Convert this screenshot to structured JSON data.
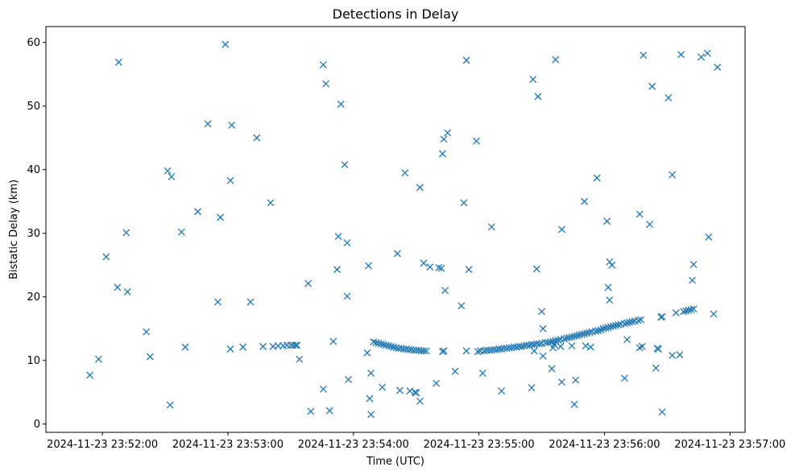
{
  "chart_data": {
    "type": "scatter",
    "title": "Detections in Delay",
    "xlabel": "Time (UTC)",
    "ylabel": "Bistatic Delay (km)",
    "marker": "x",
    "color": "#1f77b4",
    "x_unit": "minutes after 2024-11-23 23:52:00",
    "xlim": [
      -0.45,
      5.12
    ],
    "ylim": [
      -1.3,
      62.5
    ],
    "xticks": [
      {
        "value": 0,
        "label": "2024-11-23 23:52:00"
      },
      {
        "value": 1,
        "label": "2024-11-23 23:53:00"
      },
      {
        "value": 2,
        "label": "2024-11-23 23:54:00"
      },
      {
        "value": 3,
        "label": "2024-11-23 23:55:00"
      },
      {
        "value": 4,
        "label": "2024-11-23 23:56:00"
      },
      {
        "value": 5,
        "label": "2024-11-23 23:57:00"
      }
    ],
    "yticks": [
      0,
      10,
      20,
      30,
      40,
      50,
      60
    ],
    "series": [
      {
        "name": "detections",
        "points": [
          [
            -0.1,
            7.7
          ],
          [
            -0.03,
            10.2
          ],
          [
            0.03,
            26.3
          ],
          [
            0.12,
            21.5
          ],
          [
            0.13,
            56.9
          ],
          [
            0.19,
            30.1
          ],
          [
            0.2,
            20.8
          ],
          [
            0.35,
            14.5
          ],
          [
            0.38,
            10.6
          ],
          [
            0.52,
            39.8
          ],
          [
            0.54,
            3.0
          ],
          [
            0.55,
            38.9
          ],
          [
            0.63,
            30.2
          ],
          [
            0.66,
            12.1
          ],
          [
            0.76,
            33.4
          ],
          [
            0.84,
            47.2
          ],
          [
            0.92,
            19.2
          ],
          [
            0.94,
            32.5
          ],
          [
            0.98,
            59.7
          ],
          [
            1.02,
            11.8
          ],
          [
            1.02,
            38.3
          ],
          [
            1.03,
            47.0
          ],
          [
            1.12,
            12.1
          ],
          [
            1.18,
            19.2
          ],
          [
            1.23,
            45.0
          ],
          [
            1.28,
            12.2
          ],
          [
            1.34,
            34.8
          ],
          [
            1.36,
            12.2
          ],
          [
            1.4,
            12.3
          ],
          [
            1.44,
            12.3
          ],
          [
            1.47,
            12.4
          ],
          [
            1.5,
            12.4
          ],
          [
            1.52,
            12.4
          ],
          [
            1.54,
            12.4
          ],
          [
            1.55,
            12.4
          ],
          [
            1.57,
            10.2
          ],
          [
            1.64,
            22.1
          ],
          [
            1.66,
            2.0
          ],
          [
            1.76,
            5.5
          ],
          [
            1.76,
            56.5
          ],
          [
            1.78,
            53.5
          ],
          [
            1.81,
            2.1
          ],
          [
            1.84,
            13.0
          ],
          [
            1.87,
            24.3
          ],
          [
            1.88,
            29.5
          ],
          [
            1.9,
            50.3
          ],
          [
            1.93,
            40.8
          ],
          [
            1.95,
            20.1
          ],
          [
            1.95,
            28.5
          ],
          [
            1.96,
            7.0
          ],
          [
            2.11,
            11.2
          ],
          [
            2.12,
            24.9
          ],
          [
            2.13,
            4.0
          ],
          [
            2.14,
            8.0
          ],
          [
            2.14,
            1.5
          ],
          [
            2.16,
            12.9
          ],
          [
            2.18,
            12.8
          ],
          [
            2.2,
            12.7
          ],
          [
            2.22,
            12.6
          ],
          [
            2.23,
            5.8
          ],
          [
            2.24,
            12.5
          ],
          [
            2.26,
            12.4
          ],
          [
            2.28,
            12.3
          ],
          [
            2.3,
            12.2
          ],
          [
            2.32,
            12.1
          ],
          [
            2.34,
            12.0
          ],
          [
            2.35,
            26.8
          ],
          [
            2.36,
            11.9
          ],
          [
            2.37,
            5.3
          ],
          [
            2.38,
            11.9
          ],
          [
            2.4,
            11.8
          ],
          [
            2.41,
            39.5
          ],
          [
            2.42,
            11.8
          ],
          [
            2.44,
            11.7
          ],
          [
            2.45,
            5.2
          ],
          [
            2.46,
            11.7
          ],
          [
            2.48,
            11.6
          ],
          [
            2.49,
            5.0
          ],
          [
            2.5,
            11.6
          ],
          [
            2.5,
            4.9
          ],
          [
            2.52,
            11.6
          ],
          [
            2.53,
            37.2
          ],
          [
            2.53,
            3.6
          ],
          [
            2.54,
            11.5
          ],
          [
            2.56,
            11.5
          ],
          [
            2.56,
            25.3
          ],
          [
            2.58,
            11.5
          ],
          [
            2.61,
            24.7
          ],
          [
            2.66,
            6.4
          ],
          [
            2.68,
            24.6
          ],
          [
            2.7,
            24.5
          ],
          [
            2.71,
            11.4
          ],
          [
            2.71,
            42.5
          ],
          [
            2.72,
            11.5
          ],
          [
            2.72,
            44.8
          ],
          [
            2.73,
            21.0
          ],
          [
            2.75,
            45.8
          ],
          [
            2.81,
            8.3
          ],
          [
            2.86,
            18.6
          ],
          [
            2.88,
            34.8
          ],
          [
            2.9,
            11.5
          ],
          [
            2.9,
            57.2
          ],
          [
            2.92,
            24.3
          ],
          [
            2.98,
            44.5
          ],
          [
            2.99,
            11.4
          ],
          [
            3.01,
            11.5
          ],
          [
            3.03,
            8.0
          ],
          [
            3.04,
            11.5
          ],
          [
            3.06,
            11.6
          ],
          [
            3.08,
            11.6
          ],
          [
            3.1,
            11.6
          ],
          [
            3.1,
            31.0
          ],
          [
            3.12,
            11.7
          ],
          [
            3.14,
            11.7
          ],
          [
            3.16,
            11.8
          ],
          [
            3.18,
            11.8
          ],
          [
            3.18,
            5.2
          ],
          [
            3.2,
            11.9
          ],
          [
            3.22,
            11.9
          ],
          [
            3.24,
            12.0
          ],
          [
            3.26,
            12.0
          ],
          [
            3.28,
            12.1
          ],
          [
            3.3,
            12.1
          ],
          [
            3.32,
            12.2
          ],
          [
            3.34,
            12.2
          ],
          [
            3.36,
            12.3
          ],
          [
            3.38,
            12.4
          ],
          [
            3.4,
            12.4
          ],
          [
            3.42,
            12.5
          ],
          [
            3.42,
            5.7
          ],
          [
            3.43,
            54.2
          ],
          [
            3.44,
            12.5
          ],
          [
            3.44,
            11.5
          ],
          [
            3.46,
            12.6
          ],
          [
            3.46,
            24.4
          ],
          [
            3.47,
            51.5
          ],
          [
            3.48,
            12.6
          ],
          [
            3.5,
            12.7
          ],
          [
            3.5,
            17.7
          ],
          [
            3.51,
            15.0
          ],
          [
            3.51,
            10.7
          ],
          [
            3.53,
            12.8
          ],
          [
            3.55,
            12.8
          ],
          [
            3.57,
            12.9
          ],
          [
            3.58,
            8.7
          ],
          [
            3.59,
            12.0
          ],
          [
            3.59,
            13.0
          ],
          [
            3.6,
            12.5
          ],
          [
            3.61,
            13.1
          ],
          [
            3.61,
            57.3
          ],
          [
            3.63,
            13.2
          ],
          [
            3.65,
            13.3
          ],
          [
            3.65,
            12.2
          ],
          [
            3.66,
            6.6
          ],
          [
            3.66,
            30.6
          ],
          [
            3.68,
            13.4
          ],
          [
            3.7,
            13.5
          ],
          [
            3.72,
            13.6
          ],
          [
            3.74,
            12.3
          ],
          [
            3.74,
            13.7
          ],
          [
            3.76,
            13.8
          ],
          [
            3.76,
            3.1
          ],
          [
            3.77,
            6.9
          ],
          [
            3.78,
            13.9
          ],
          [
            3.8,
            14.0
          ],
          [
            3.82,
            14.1
          ],
          [
            3.84,
            14.2
          ],
          [
            3.84,
            35.0
          ],
          [
            3.85,
            12.3
          ],
          [
            3.86,
            14.3
          ],
          [
            3.88,
            14.4
          ],
          [
            3.89,
            12.1
          ],
          [
            3.9,
            14.5
          ],
          [
            3.93,
            14.6
          ],
          [
            3.94,
            38.7
          ],
          [
            3.95,
            14.7
          ],
          [
            3.97,
            14.8
          ],
          [
            3.99,
            15.0
          ],
          [
            4.01,
            15.1
          ],
          [
            4.02,
            31.9
          ],
          [
            4.03,
            15.2
          ],
          [
            4.03,
            21.5
          ],
          [
            4.04,
            19.5
          ],
          [
            4.04,
            25.5
          ],
          [
            4.05,
            15.3
          ],
          [
            4.06,
            25.0
          ],
          [
            4.07,
            15.4
          ],
          [
            4.09,
            15.5
          ],
          [
            4.11,
            15.6
          ],
          [
            4.13,
            15.7
          ],
          [
            4.16,
            15.8
          ],
          [
            4.16,
            7.2
          ],
          [
            4.18,
            15.9
          ],
          [
            4.18,
            13.3
          ],
          [
            4.2,
            16.0
          ],
          [
            4.22,
            16.1
          ],
          [
            4.24,
            16.2
          ],
          [
            4.27,
            16.3
          ],
          [
            4.28,
            12.0
          ],
          [
            4.28,
            33.0
          ],
          [
            4.29,
            16.4
          ],
          [
            4.3,
            12.2
          ],
          [
            4.31,
            58.0
          ],
          [
            4.36,
            31.4
          ],
          [
            4.38,
            53.1
          ],
          [
            4.41,
            8.8
          ],
          [
            4.42,
            11.9
          ],
          [
            4.43,
            11.8
          ],
          [
            4.45,
            16.8
          ],
          [
            4.46,
            16.9
          ],
          [
            4.46,
            1.9
          ],
          [
            4.51,
            51.3
          ],
          [
            4.54,
            39.2
          ],
          [
            4.54,
            10.8
          ],
          [
            4.57,
            17.5
          ],
          [
            4.6,
            10.9
          ],
          [
            4.61,
            58.1
          ],
          [
            4.63,
            17.7
          ],
          [
            4.65,
            17.8
          ],
          [
            4.67,
            17.9
          ],
          [
            4.69,
            18.0
          ],
          [
            4.7,
            22.6
          ],
          [
            4.71,
            25.1
          ],
          [
            4.71,
            18.1
          ],
          [
            4.77,
            57.7
          ],
          [
            4.82,
            58.3
          ],
          [
            4.83,
            29.4
          ],
          [
            4.87,
            17.3
          ],
          [
            4.9,
            56.1
          ]
        ]
      }
    ]
  }
}
